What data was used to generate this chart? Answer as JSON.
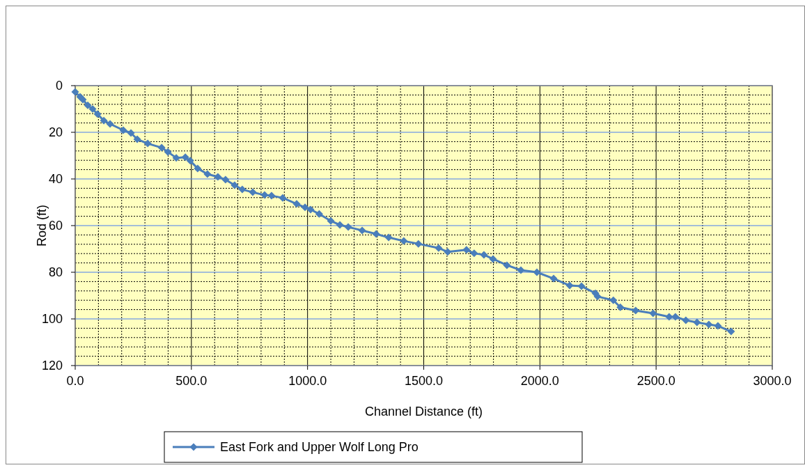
{
  "chart_data": {
    "type": "line",
    "xlabel": "Channel Distance (ft)",
    "ylabel": "Rod (ft)",
    "xlim": [
      0,
      3000
    ],
    "ylim": [
      120,
      0
    ],
    "xticks": [
      {
        "value": 0,
        "label": "0.0"
      },
      {
        "value": 500,
        "label": "500.0"
      },
      {
        "value": 1000,
        "label": "1000.0"
      },
      {
        "value": 1500,
        "label": "1500.0"
      },
      {
        "value": 2000,
        "label": "2000.0"
      },
      {
        "value": 2500,
        "label": "2500.0"
      },
      {
        "value": 3000,
        "label": "3000.0"
      }
    ],
    "yticks": [
      0,
      20,
      40,
      60,
      80,
      100,
      120
    ],
    "grid": true,
    "legend": "bottom",
    "marker": "diamond",
    "line_style": "solid",
    "x": [
      0,
      21,
      33,
      54,
      75,
      96,
      123,
      150,
      207,
      240,
      267,
      312,
      372,
      399,
      435,
      474,
      495,
      527,
      569,
      614,
      647,
      686,
      719,
      764,
      815,
      845,
      893,
      953,
      989,
      1013,
      1050,
      1100,
      1139,
      1175,
      1235,
      1295,
      1349,
      1414,
      1477,
      1564,
      1603,
      1684,
      1717,
      1759,
      1798,
      1858,
      1918,
      1987,
      2059,
      2128,
      2179,
      2239,
      2248,
      2316,
      2346,
      2412,
      2487,
      2556,
      2583,
      2628,
      2676,
      2727,
      2766,
      2823
    ],
    "series": [
      {
        "name": "East Fork and Upper Wolf Long Pro",
        "color": "#4a7ebb",
        "values": [
          2.7,
          4.8,
          6,
          8.4,
          10,
          12.2,
          15,
          16.4,
          19.1,
          20.3,
          23,
          24.8,
          26.6,
          28.4,
          31,
          30.7,
          32.2,
          35.5,
          37.9,
          39.1,
          40.3,
          42.7,
          44.5,
          45.7,
          46.9,
          47.2,
          48.1,
          50.7,
          52.2,
          53.1,
          55,
          58,
          59.7,
          60.6,
          62.1,
          63.6,
          65.1,
          66.6,
          67.8,
          69.6,
          71.3,
          70.4,
          71.9,
          72.5,
          74.3,
          77,
          79.1,
          80,
          82.7,
          85.7,
          86,
          89,
          90.4,
          92,
          95,
          96.4,
          97.6,
          99.1,
          99.1,
          100.6,
          101.5,
          102.4,
          103,
          105.4
        ]
      }
    ]
  }
}
